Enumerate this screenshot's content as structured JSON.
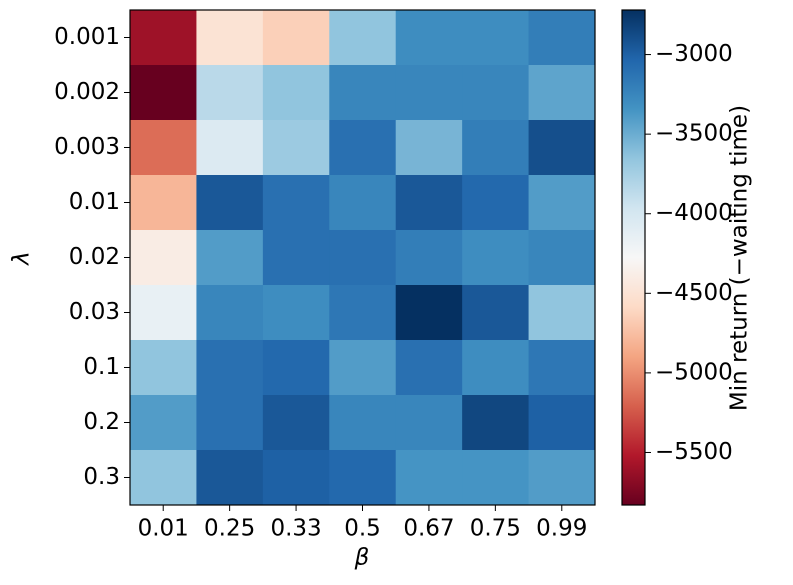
{
  "chart_data": {
    "type": "heatmap",
    "x_label": "β",
    "y_label": "λ",
    "categories": [
      "0.01",
      "0.25",
      "0.33",
      "0.5",
      "0.67",
      "0.75",
      "0.99"
    ],
    "y_categories": [
      "0.001",
      "0.002",
      "0.003",
      "0.01",
      "0.02",
      "0.03",
      "0.1",
      "0.2",
      "0.3"
    ],
    "values": [
      [
        -5600,
        -4500,
        -4650,
        -3650,
        -3300,
        -3300,
        -3200
      ],
      [
        -5830,
        -3850,
        -3650,
        -3250,
        -3250,
        -3250,
        -3450
      ],
      [
        -5150,
        -4050,
        -3700,
        -3100,
        -3550,
        -3200,
        -2900
      ],
      [
        -4800,
        -2950,
        -3100,
        -3250,
        -2950,
        -3050,
        -3400
      ],
      [
        -4400,
        -3400,
        -3100,
        -3100,
        -3200,
        -3300,
        -3250
      ],
      [
        -4150,
        -3250,
        -3300,
        -3150,
        -2720,
        -2950,
        -3650
      ],
      [
        -3650,
        -3100,
        -3050,
        -3400,
        -3100,
        -3300,
        -3150
      ],
      [
        -3400,
        -3100,
        -2950,
        -3250,
        -3250,
        -2850,
        -3000
      ],
      [
        -3650,
        -2950,
        -3000,
        -3050,
        -3350,
        -3350,
        -3400
      ]
    ],
    "colormap": "RdBu",
    "colorbar_label": "Min return (−waiting time)",
    "clim": [
      -5830,
      -2720
    ],
    "cticks": [
      {
        "value": -3000,
        "label": "−3000"
      },
      {
        "value": -3500,
        "label": "−3500"
      },
      {
        "value": -4000,
        "label": "−4000"
      },
      {
        "value": -4500,
        "label": "−4500"
      },
      {
        "value": -5000,
        "label": "−5000"
      },
      {
        "value": -5500,
        "label": "−5500"
      }
    ]
  }
}
